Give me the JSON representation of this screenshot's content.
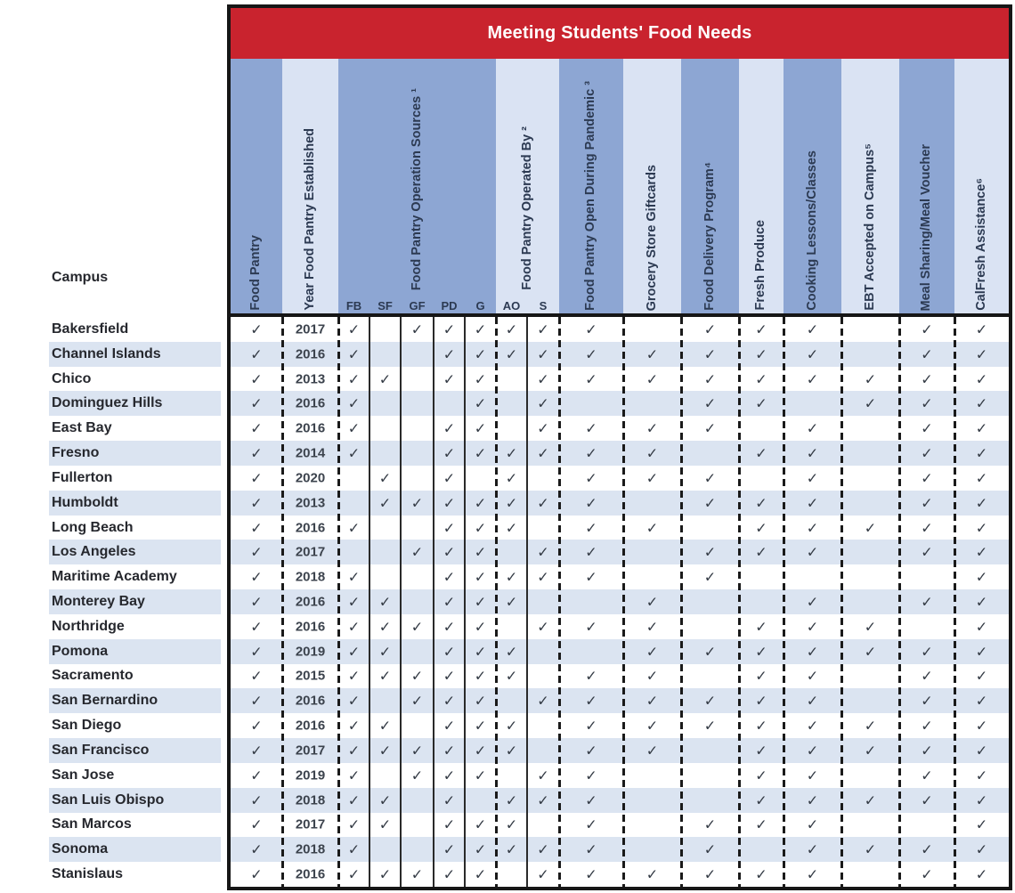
{
  "title": "Meeting Students' Food Needs",
  "campus_header": "Campus",
  "check_glyph": "✓",
  "colors": {
    "red": "#c9232e",
    "band_dark": "#8da6d3",
    "band_light": "#dae3f3",
    "stripe": "#dbe4f1",
    "check": "#333a44"
  },
  "columns": [
    {
      "id": "food_pantry",
      "label": "Food Pantry"
    },
    {
      "id": "year",
      "label": "Year Food Pantry Established"
    },
    {
      "id": "operation_sources",
      "label": "Food Pantry Operation Sources ¹",
      "subcols": [
        "FB",
        "SF",
        "GF",
        "PD",
        "G"
      ]
    },
    {
      "id": "operated_by",
      "label": "Food Pantry Operated By ²",
      "subcols": [
        "AO",
        "S"
      ]
    },
    {
      "id": "pandemic",
      "label": "Food Pantry Open During Pandemic ³"
    },
    {
      "id": "giftcards",
      "label": "Grocery Store Giftcards"
    },
    {
      "id": "delivery",
      "label": "Food Delivery Program⁴"
    },
    {
      "id": "fresh",
      "label": "Fresh Produce"
    },
    {
      "id": "cooking",
      "label": "Cooking Lessons/Classes"
    },
    {
      "id": "ebt",
      "label": "EBT Accepted on Campus⁵"
    },
    {
      "id": "meal",
      "label": "Meal Sharing/Meal Voucher"
    },
    {
      "id": "calfresh",
      "label": "CalFresh Assistance⁶"
    }
  ],
  "rows": [
    {
      "campus": "Bakersfield",
      "year": "2017",
      "checks": {
        "food_pantry": 1,
        "FB": 1,
        "GF": 1,
        "PD": 1,
        "G": 1,
        "AO": 1,
        "S": 1,
        "pandemic": 1,
        "delivery": 1,
        "fresh": 1,
        "cooking": 1,
        "meal": 1,
        "calfresh": 1
      }
    },
    {
      "campus": "Channel Islands",
      "year": "2016",
      "checks": {
        "food_pantry": 1,
        "FB": 1,
        "PD": 1,
        "G": 1,
        "AO": 1,
        "S": 1,
        "pandemic": 1,
        "giftcards": 1,
        "delivery": 1,
        "fresh": 1,
        "cooking": 1,
        "meal": 1,
        "calfresh": 1
      }
    },
    {
      "campus": "Chico",
      "year": "2013",
      "checks": {
        "food_pantry": 1,
        "FB": 1,
        "SF": 1,
        "PD": 1,
        "G": 1,
        "S": 1,
        "pandemic": 1,
        "giftcards": 1,
        "delivery": 1,
        "fresh": 1,
        "cooking": 1,
        "ebt": 1,
        "meal": 1,
        "calfresh": 1
      }
    },
    {
      "campus": "Dominguez Hills",
      "year": "2016",
      "checks": {
        "food_pantry": 1,
        "FB": 1,
        "G": 1,
        "S": 1,
        "delivery": 1,
        "fresh": 1,
        "ebt": 1,
        "meal": 1,
        "calfresh": 1
      }
    },
    {
      "campus": "East Bay",
      "year": "2016",
      "checks": {
        "food_pantry": 1,
        "FB": 1,
        "PD": 1,
        "G": 1,
        "S": 1,
        "pandemic": 1,
        "giftcards": 1,
        "delivery": 1,
        "cooking": 1,
        "meal": 1,
        "calfresh": 1
      }
    },
    {
      "campus": "Fresno",
      "year": "2014",
      "checks": {
        "food_pantry": 1,
        "FB": 1,
        "PD": 1,
        "G": 1,
        "AO": 1,
        "S": 1,
        "pandemic": 1,
        "giftcards": 1,
        "fresh": 1,
        "cooking": 1,
        "meal": 1,
        "calfresh": 1
      }
    },
    {
      "campus": "Fullerton",
      "year": "2020",
      "checks": {
        "food_pantry": 1,
        "SF": 1,
        "PD": 1,
        "AO": 1,
        "pandemic": 1,
        "giftcards": 1,
        "delivery": 1,
        "cooking": 1,
        "meal": 1,
        "calfresh": 1
      }
    },
    {
      "campus": "Humboldt",
      "year": "2013",
      "checks": {
        "food_pantry": 1,
        "SF": 1,
        "GF": 1,
        "PD": 1,
        "G": 1,
        "AO": 1,
        "S": 1,
        "pandemic": 1,
        "delivery": 1,
        "fresh": 1,
        "cooking": 1,
        "meal": 1,
        "calfresh": 1
      }
    },
    {
      "campus": "Long Beach",
      "year": "2016",
      "checks": {
        "food_pantry": 1,
        "FB": 1,
        "PD": 1,
        "G": 1,
        "AO": 1,
        "pandemic": 1,
        "giftcards": 1,
        "fresh": 1,
        "cooking": 1,
        "ebt": 1,
        "meal": 1,
        "calfresh": 1
      }
    },
    {
      "campus": "Los Angeles",
      "year": "2017",
      "checks": {
        "food_pantry": 1,
        "GF": 1,
        "PD": 1,
        "G": 1,
        "S": 1,
        "pandemic": 1,
        "delivery": 1,
        "fresh": 1,
        "cooking": 1,
        "meal": 1,
        "calfresh": 1
      }
    },
    {
      "campus": "Maritime Academy",
      "year": "2018",
      "checks": {
        "food_pantry": 1,
        "FB": 1,
        "PD": 1,
        "G": 1,
        "AO": 1,
        "S": 1,
        "pandemic": 1,
        "delivery": 1,
        "calfresh": 1
      }
    },
    {
      "campus": "Monterey Bay",
      "year": "2016",
      "checks": {
        "food_pantry": 1,
        "FB": 1,
        "SF": 1,
        "PD": 1,
        "G": 1,
        "AO": 1,
        "giftcards": 1,
        "cooking": 1,
        "meal": 1,
        "calfresh": 1
      }
    },
    {
      "campus": "Northridge",
      "year": "2016",
      "checks": {
        "food_pantry": 1,
        "FB": 1,
        "SF": 1,
        "GF": 1,
        "PD": 1,
        "G": 1,
        "S": 1,
        "pandemic": 1,
        "giftcards": 1,
        "fresh": 1,
        "cooking": 1,
        "ebt": 1,
        "calfresh": 1
      }
    },
    {
      "campus": "Pomona",
      "year": "2019",
      "checks": {
        "food_pantry": 1,
        "FB": 1,
        "SF": 1,
        "PD": 1,
        "G": 1,
        "AO": 1,
        "giftcards": 1,
        "delivery": 1,
        "fresh": 1,
        "cooking": 1,
        "ebt": 1,
        "meal": 1,
        "calfresh": 1
      }
    },
    {
      "campus": "Sacramento",
      "year": "2015",
      "checks": {
        "food_pantry": 1,
        "FB": 1,
        "SF": 1,
        "GF": 1,
        "PD": 1,
        "G": 1,
        "AO": 1,
        "pandemic": 1,
        "giftcards": 1,
        "fresh": 1,
        "cooking": 1,
        "meal": 1,
        "calfresh": 1
      }
    },
    {
      "campus": "San Bernardino",
      "year": "2016",
      "checks": {
        "food_pantry": 1,
        "FB": 1,
        "GF": 1,
        "PD": 1,
        "G": 1,
        "S": 1,
        "pandemic": 1,
        "giftcards": 1,
        "delivery": 1,
        "fresh": 1,
        "cooking": 1,
        "meal": 1,
        "calfresh": 1
      }
    },
    {
      "campus": "San Diego",
      "year": "2016",
      "checks": {
        "food_pantry": 1,
        "FB": 1,
        "SF": 1,
        "PD": 1,
        "G": 1,
        "AO": 1,
        "pandemic": 1,
        "giftcards": 1,
        "delivery": 1,
        "fresh": 1,
        "cooking": 1,
        "ebt": 1,
        "meal": 1,
        "calfresh": 1
      }
    },
    {
      "campus": "San Francisco",
      "year": "2017",
      "checks": {
        "food_pantry": 1,
        "FB": 1,
        "SF": 1,
        "GF": 1,
        "PD": 1,
        "G": 1,
        "AO": 1,
        "pandemic": 1,
        "giftcards": 1,
        "fresh": 1,
        "cooking": 1,
        "ebt": 1,
        "meal": 1,
        "calfresh": 1
      }
    },
    {
      "campus": "San Jose",
      "year": "2019",
      "checks": {
        "food_pantry": 1,
        "FB": 1,
        "GF": 1,
        "PD": 1,
        "G": 1,
        "S": 1,
        "pandemic": 1,
        "fresh": 1,
        "cooking": 1,
        "meal": 1,
        "calfresh": 1
      }
    },
    {
      "campus": "San Luis Obispo",
      "year": "2018",
      "checks": {
        "food_pantry": 1,
        "FB": 1,
        "SF": 1,
        "PD": 1,
        "AO": 1,
        "S": 1,
        "pandemic": 1,
        "fresh": 1,
        "cooking": 1,
        "ebt": 1,
        "meal": 1,
        "calfresh": 1
      }
    },
    {
      "campus": "San Marcos",
      "year": "2017",
      "checks": {
        "food_pantry": 1,
        "FB": 1,
        "SF": 1,
        "PD": 1,
        "G": 1,
        "AO": 1,
        "pandemic": 1,
        "delivery": 1,
        "fresh": 1,
        "cooking": 1,
        "calfresh": 1
      }
    },
    {
      "campus": "Sonoma",
      "year": "2018",
      "checks": {
        "food_pantry": 1,
        "FB": 1,
        "PD": 1,
        "G": 1,
        "AO": 1,
        "S": 1,
        "pandemic": 1,
        "delivery": 1,
        "cooking": 1,
        "ebt": 1,
        "meal": 1,
        "calfresh": 1
      }
    },
    {
      "campus": "Stanislaus",
      "year": "2016",
      "checks": {
        "food_pantry": 1,
        "FB": 1,
        "SF": 1,
        "GF": 1,
        "PD": 1,
        "G": 1,
        "S": 1,
        "pandemic": 1,
        "giftcards": 1,
        "delivery": 1,
        "fresh": 1,
        "cooking": 1,
        "meal": 1,
        "calfresh": 1
      }
    }
  ]
}
